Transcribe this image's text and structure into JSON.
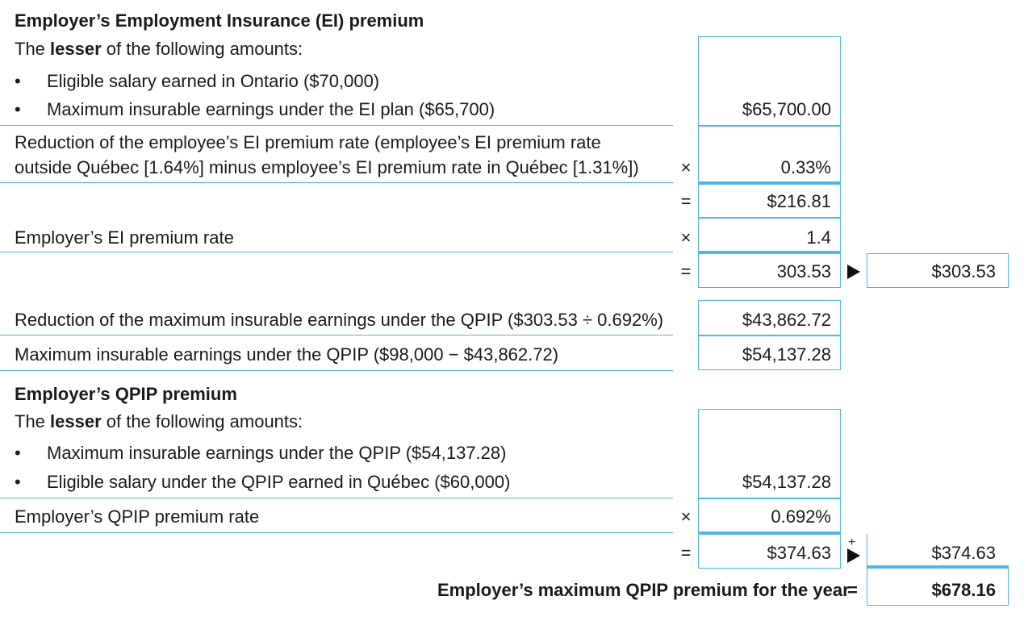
{
  "ei": {
    "title": "Employer’s Employment Insurance (EI) premium",
    "lesser_pre": "The ",
    "lesser_bold": "lesser",
    "lesser_post": " of the following amounts:",
    "bullets": [
      "Eligible salary earned in Ontario ($70,000)",
      "Maximum insurable earnings under the EI plan ($65,700)"
    ],
    "amount": "$65,700.00",
    "reduction_line1": "Reduction of the employee’s EI premium rate (employee’s EI premium rate",
    "reduction_line2": "outside Québec [1.64%] minus employee’s EI premium rate in Québec [1.31%])",
    "reduction_value": "0.33%",
    "subtotal": "$216.81",
    "rate_label": "Employer’s EI premium rate",
    "rate_value": "1.4",
    "result": "303.53",
    "result_carried": "$303.53"
  },
  "qpip_reduction": {
    "label": "Reduction of the maximum insurable earnings under the QPIP ($303.53 ÷ 0.692%)",
    "value": "$43,862.72"
  },
  "qpip_max": {
    "label": "Maximum insurable earnings under the QPIP ($98,000 − $43,862.72)",
    "value": "$54,137.28"
  },
  "qpip": {
    "title": "Employer’s QPIP premium",
    "lesser_pre": "The ",
    "lesser_bold": "lesser",
    "lesser_post": " of the following amounts:",
    "bullets": [
      "Maximum insurable earnings under the QPIP ($54,137.28)",
      "Eligible salary under the QPIP earned in Québec ($60,000)"
    ],
    "amount": "$54,137.28",
    "rate_label": "Employer’s QPIP premium rate",
    "rate_value": "0.692%",
    "result": "$374.63",
    "result_carried": "$374.63"
  },
  "total": {
    "label": "Employer’s maximum QPIP premium for the year",
    "equals": "=",
    "value": "$678.16"
  },
  "ops": {
    "times": "×",
    "equals": "=",
    "plus": "+",
    "bullet": "•"
  }
}
